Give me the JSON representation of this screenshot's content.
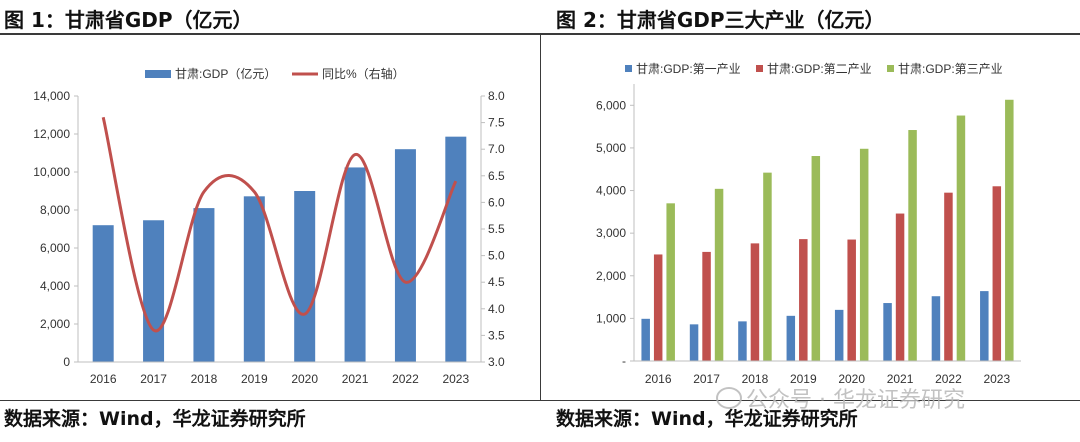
{
  "chart_data": [
    {
      "type": "bar+line",
      "title": "图 1：甘肃省GDP（亿元）",
      "categories": [
        "2016",
        "2017",
        "2018",
        "2019",
        "2020",
        "2021",
        "2022",
        "2023"
      ],
      "series": [
        {
          "name": "甘肃:GDP（亿元）",
          "type": "bar",
          "axis": "left",
          "color": "#4f81bd",
          "values": [
            7200,
            7460,
            8100,
            8720,
            9000,
            10240,
            11200,
            11860
          ]
        },
        {
          "name": "同比%（右轴）",
          "type": "line",
          "axis": "right",
          "color": "#c0504d",
          "values": [
            7.6,
            3.6,
            6.2,
            6.2,
            3.9,
            6.9,
            4.5,
            6.4
          ]
        }
      ],
      "ylim": [
        0,
        14000
      ],
      "yticks": [
        "0",
        "2,000",
        "4,000",
        "6,000",
        "8,000",
        "10,000",
        "12,000",
        "14,000"
      ],
      "y2lim": [
        3.0,
        8.0
      ],
      "y2ticks": [
        "3.0",
        "3.5",
        "4.0",
        "4.5",
        "5.0",
        "5.5",
        "6.0",
        "6.5",
        "7.0",
        "7.5",
        "8.0"
      ],
      "legend": "top-center",
      "grid": false
    },
    {
      "type": "bar",
      "title": "图 2：甘肃省GDP三大产业（亿元）",
      "categories": [
        "2016",
        "2017",
        "2018",
        "2019",
        "2020",
        "2021",
        "2022",
        "2023"
      ],
      "series": [
        {
          "name": "甘肃:GDP:第一产业",
          "color": "#4f81bd",
          "values": [
            990,
            860,
            930,
            1060,
            1200,
            1360,
            1520,
            1640
          ]
        },
        {
          "name": "甘肃:GDP:第二产业",
          "color": "#c0504d",
          "values": [
            2500,
            2560,
            2760,
            2860,
            2850,
            3460,
            3950,
            4100
          ]
        },
        {
          "name": "甘肃:GDP:第三产业",
          "color": "#9bbb59",
          "values": [
            3700,
            4040,
            4420,
            4810,
            4980,
            5420,
            5760,
            6130
          ]
        }
      ],
      "ylim": [
        0,
        6500
      ],
      "yticks": [
        "-",
        "1,000",
        "2,000",
        "3,000",
        "4,000",
        "5,000",
        "6,000"
      ],
      "legend": "top-center",
      "grid": false
    }
  ],
  "sources": {
    "left": "数据来源：Wind，华龙证券研究所",
    "right": "数据来源：Wind，华龙证券研究所"
  },
  "watermark": "公众号 · 华龙证券研究"
}
